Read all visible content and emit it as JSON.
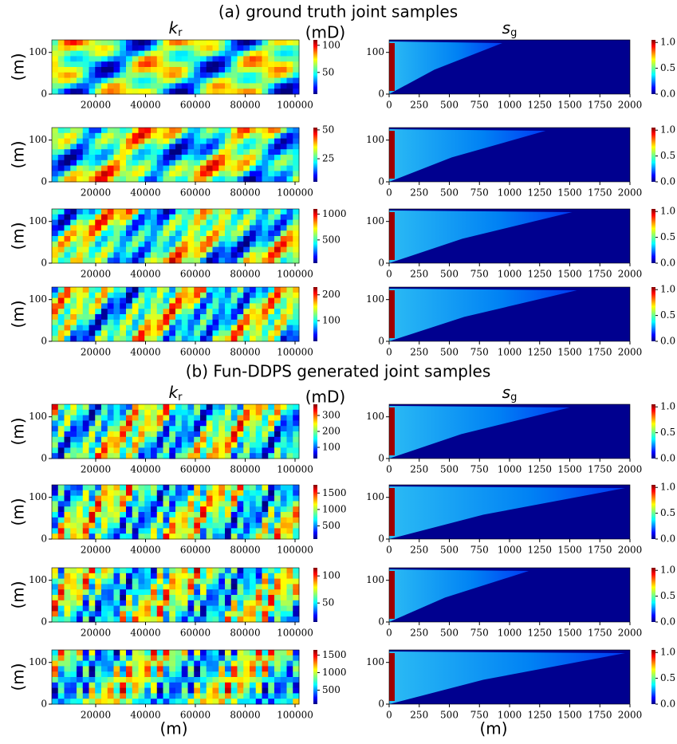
{
  "titles": [
    "(a) ground truth joint samples",
    "(b) Fun-DDPS generated joint samples"
  ],
  "chart_data": [
    {
      "type": "heatmap",
      "title": {
        "main": "k",
        "sub": "r"
      },
      "units": "(mD)",
      "ylabel": "(m)",
      "xlim": [
        2400,
        101600
      ],
      "ylim": [
        0,
        130
      ],
      "xticks": [
        20000,
        40000,
        60000,
        80000,
        100000
      ],
      "yticks": [
        0,
        100
      ],
      "clim": [
        10,
        110
      ],
      "cticks": [
        50,
        100
      ]
    },
    {
      "type": "heatmap",
      "title": {
        "main": "s",
        "sub": "g"
      },
      "xlim": [
        0,
        2000
      ],
      "ylim": [
        0,
        130
      ],
      "xticks": [
        0,
        250,
        500,
        750,
        1000,
        1250,
        1500,
        1750,
        2000
      ],
      "yticks": [
        0,
        100
      ],
      "clim": [
        0,
        1.05
      ],
      "cticks": [
        {
          "value": 0,
          "label": "0.0"
        },
        {
          "value": 0.5,
          "label": "0.5"
        },
        {
          "value": 1,
          "label": "1.0"
        }
      ]
    },
    {
      "type": "heatmap",
      "ylabel": "(m)",
      "xlim": [
        2400,
        101600
      ],
      "ylim": [
        0,
        130
      ],
      "xticks": [
        20000,
        40000,
        60000,
        80000,
        100000
      ],
      "yticks": [
        0,
        100
      ],
      "clim": [
        5,
        52
      ],
      "cticks": [
        25,
        50
      ]
    },
    {
      "type": "heatmap",
      "xlim": [
        0,
        2000
      ],
      "ylim": [
        0,
        130
      ],
      "xticks": [
        0,
        250,
        500,
        750,
        1000,
        1250,
        1500,
        1750,
        2000
      ],
      "yticks": [
        0,
        100
      ],
      "clim": [
        0,
        1.05
      ],
      "cticks": [
        {
          "value": 0,
          "label": "0.0"
        },
        {
          "value": 0.5,
          "label": "0.5"
        },
        {
          "value": 1,
          "label": "1.0"
        }
      ]
    },
    {
      "type": "heatmap",
      "ylabel": "(m)",
      "xlim": [
        2400,
        101600
      ],
      "ylim": [
        0,
        130
      ],
      "xticks": [
        20000,
        40000,
        60000,
        80000,
        100000
      ],
      "yticks": [
        0,
        100
      ],
      "clim": [
        50,
        1100
      ],
      "cticks": [
        500,
        1000
      ]
    },
    {
      "type": "heatmap",
      "xlim": [
        0,
        2000
      ],
      "ylim": [
        0,
        130
      ],
      "xticks": [
        0,
        250,
        500,
        750,
        1000,
        1250,
        1500,
        1750,
        2000
      ],
      "yticks": [
        0,
        100
      ],
      "clim": [
        0,
        1.05
      ],
      "cticks": [
        {
          "value": 0,
          "label": "0.0"
        },
        {
          "value": 0.5,
          "label": "0.5"
        },
        {
          "value": 1,
          "label": "1.0"
        }
      ]
    },
    {
      "type": "heatmap",
      "ylabel": "(m)",
      "xlim": [
        2400,
        101600
      ],
      "ylim": [
        0,
        130
      ],
      "xticks": [
        20000,
        40000,
        60000,
        80000,
        100000
      ],
      "yticks": [
        0,
        100
      ],
      "clim": [
        20,
        230
      ],
      "cticks": [
        100,
        200
      ]
    },
    {
      "type": "heatmap",
      "xlim": [
        0,
        2000
      ],
      "ylim": [
        0,
        130
      ],
      "xticks": [
        0,
        250,
        500,
        750,
        1000,
        1250,
        1500,
        1750,
        2000
      ],
      "yticks": [
        0,
        100
      ],
      "clim": [
        0,
        1.05
      ],
      "cticks": [
        {
          "value": 0,
          "label": "0.0"
        },
        {
          "value": 0.5,
          "label": "0.5"
        },
        {
          "value": 1,
          "label": "1.0"
        }
      ]
    },
    {
      "type": "heatmap",
      "title": {
        "main": "k",
        "sub": "r"
      },
      "units": "(mD)",
      "ylabel": "(m)",
      "xlim": [
        2400,
        101600
      ],
      "ylim": [
        0,
        130
      ],
      "xticks": [
        20000,
        40000,
        60000,
        80000,
        100000
      ],
      "yticks": [
        0,
        100
      ],
      "clim": [
        30,
        370
      ],
      "cticks": [
        100,
        200,
        300
      ]
    },
    {
      "type": "heatmap",
      "title": {
        "main": "s",
        "sub": "g"
      },
      "xlim": [
        0,
        2000
      ],
      "ylim": [
        0,
        130
      ],
      "xticks": [
        0,
        250,
        500,
        750,
        1000,
        1250,
        1500,
        1750,
        2000
      ],
      "yticks": [
        0,
        100
      ],
      "clim": [
        0,
        1.05
      ],
      "cticks": [
        {
          "value": 0,
          "label": "0.0"
        },
        {
          "value": 0.5,
          "label": "0.5"
        },
        {
          "value": 1,
          "label": "1.0"
        }
      ]
    },
    {
      "type": "heatmap",
      "ylabel": "(m)",
      "xlim": [
        2400,
        101600
      ],
      "ylim": [
        0,
        130
      ],
      "xticks": [
        20000,
        40000,
        60000,
        80000,
        100000
      ],
      "yticks": [
        0,
        100
      ],
      "clim": [
        100,
        1750
      ],
      "cticks": [
        500,
        1000,
        1500
      ]
    },
    {
      "type": "heatmap",
      "xlim": [
        0,
        2000
      ],
      "ylim": [
        0,
        130
      ],
      "xticks": [
        0,
        250,
        500,
        750,
        1000,
        1250,
        1500,
        1750,
        2000
      ],
      "yticks": [
        0,
        100
      ],
      "clim": [
        0,
        1.05
      ],
      "cticks": [
        {
          "value": 0,
          "label": "0.0"
        },
        {
          "value": 0.5,
          "label": "0.5"
        },
        {
          "value": 1,
          "label": "1.0"
        }
      ]
    },
    {
      "type": "heatmap",
      "ylabel": "(m)",
      "xlim": [
        2400,
        101600
      ],
      "ylim": [
        0,
        130
      ],
      "xticks": [
        20000,
        40000,
        60000,
        80000,
        100000
      ],
      "yticks": [
        0,
        100
      ],
      "clim": [
        15,
        115
      ],
      "cticks": [
        50,
        100
      ]
    },
    {
      "type": "heatmap",
      "xlim": [
        0,
        2000
      ],
      "ylim": [
        0,
        130
      ],
      "xticks": [
        0,
        250,
        500,
        750,
        1000,
        1250,
        1500,
        1750,
        2000
      ],
      "yticks": [
        0,
        100
      ],
      "clim": [
        0,
        1.05
      ],
      "cticks": [
        {
          "value": 0,
          "label": "0.0"
        },
        {
          "value": 0.5,
          "label": "0.5"
        },
        {
          "value": 1,
          "label": "1.0"
        }
      ]
    },
    {
      "type": "heatmap",
      "ylabel": "(m)",
      "xlabel": "(m)",
      "xlim": [
        2400,
        101600
      ],
      "ylim": [
        0,
        130
      ],
      "xticks": [
        20000,
        40000,
        60000,
        80000,
        100000
      ],
      "yticks": [
        0,
        100
      ],
      "clim": [
        100,
        1650
      ],
      "cticks": [
        500,
        1000,
        1500
      ]
    },
    {
      "type": "heatmap",
      "xlabel": "(m)",
      "xlim": [
        0,
        2000
      ],
      "ylim": [
        0,
        130
      ],
      "xticks": [
        0,
        250,
        500,
        750,
        1000,
        1250,
        1500,
        1750,
        2000
      ],
      "yticks": [
        0,
        100
      ],
      "clim": [
        0,
        1.05
      ],
      "cticks": [
        {
          "value": 0,
          "label": "0.0"
        },
        {
          "value": 0.5,
          "label": "0.5"
        },
        {
          "value": 1,
          "label": "1.0"
        }
      ]
    }
  ]
}
